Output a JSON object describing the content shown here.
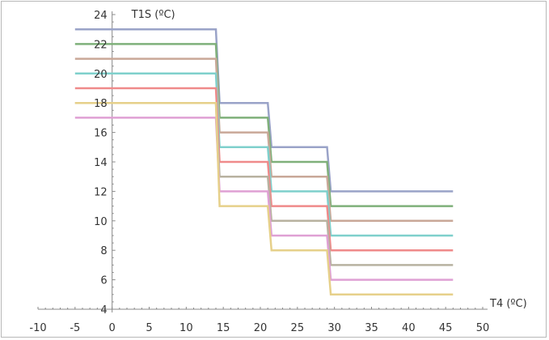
{
  "chart_data": {
    "type": "line",
    "title": "",
    "xlabel": "T4 (ºC)",
    "ylabel": "T1S (ºC)",
    "xlim": [
      -10,
      50
    ],
    "ylim": [
      4,
      24
    ],
    "xticks": [
      -10,
      -5,
      0,
      5,
      10,
      15,
      20,
      25,
      30,
      35,
      40,
      45,
      50
    ],
    "yticks": [
      4,
      6,
      8,
      10,
      12,
      14,
      16,
      18,
      20,
      22,
      24
    ],
    "grid": false,
    "legend": "none",
    "series": [
      {
        "color": "#9aa3c8",
        "x": [
          -5,
          14,
          14.5,
          21,
          21.5,
          29,
          29.5,
          46
        ],
        "y": [
          23,
          23,
          18,
          18,
          15,
          15,
          12,
          12
        ]
      },
      {
        "color": "#7fb07a",
        "x": [
          -5,
          14,
          14.5,
          21,
          21.5,
          29,
          29.5,
          46
        ],
        "y": [
          22,
          22,
          17,
          17,
          14,
          14,
          11,
          11
        ]
      },
      {
        "color": "#c9a898",
        "x": [
          -5,
          14,
          14.5,
          21,
          21.5,
          29,
          29.5,
          46
        ],
        "y": [
          21,
          21,
          16,
          16,
          13,
          13,
          10,
          10
        ]
      },
      {
        "color": "#7fd0cc",
        "x": [
          -5,
          14,
          14.5,
          21,
          21.5,
          29,
          29.5,
          46
        ],
        "y": [
          20,
          20,
          15,
          15,
          12,
          12,
          9,
          9
        ]
      },
      {
        "color": "#ef8a8a",
        "x": [
          -5,
          14,
          14.5,
          21,
          21.5,
          29,
          29.5,
          46
        ],
        "y": [
          19,
          19,
          14,
          14,
          11,
          11,
          8,
          8
        ]
      },
      {
        "color": "#b8b2a0",
        "x": [
          -5,
          14,
          14.5,
          21,
          21.5,
          29,
          29.5,
          46
        ],
        "y": [
          18,
          18,
          13,
          13,
          10,
          10,
          7,
          7
        ]
      },
      {
        "color": "#dfa0d4",
        "x": [
          -5,
          14,
          14.5,
          21,
          21.5,
          29,
          29.5,
          46
        ],
        "y": [
          17,
          17,
          12,
          12,
          9,
          9,
          6,
          6
        ]
      },
      {
        "color": "#e6d08a",
        "x": [
          -5,
          14,
          14.5,
          21,
          21.5,
          29,
          29.5,
          46
        ],
        "y": [
          18,
          18,
          11,
          11,
          8,
          8,
          5,
          5
        ]
      }
    ]
  }
}
